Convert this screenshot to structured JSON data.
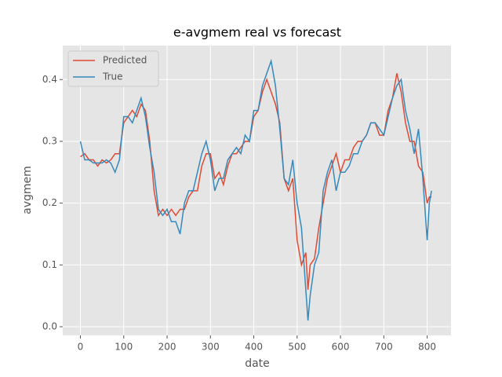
{
  "chart_data": {
    "type": "line",
    "title": "e-avgmem real vs forecast",
    "x_label": "date",
    "y_label": "avgmem",
    "x": [
      0,
      10,
      20,
      30,
      40,
      50,
      60,
      70,
      80,
      90,
      100,
      110,
      120,
      130,
      140,
      150,
      160,
      170,
      180,
      190,
      200,
      210,
      220,
      230,
      240,
      250,
      260,
      270,
      280,
      290,
      300,
      310,
      320,
      330,
      340,
      350,
      360,
      370,
      380,
      390,
      400,
      410,
      420,
      430,
      440,
      450,
      460,
      470,
      480,
      490,
      500,
      510,
      520,
      525,
      530,
      540,
      550,
      560,
      570,
      580,
      590,
      600,
      610,
      620,
      630,
      640,
      650,
      660,
      670,
      680,
      690,
      700,
      710,
      720,
      730,
      740,
      750,
      760,
      770,
      780,
      790,
      800,
      805,
      810
    ],
    "series": [
      {
        "name": "Predicted",
        "color": "#E24A33",
        "values": [
          0.275,
          0.28,
          0.27,
          0.27,
          0.26,
          0.27,
          0.265,
          0.27,
          0.28,
          0.28,
          0.33,
          0.34,
          0.35,
          0.34,
          0.36,
          0.35,
          0.3,
          0.22,
          0.18,
          0.19,
          0.18,
          0.19,
          0.18,
          0.19,
          0.19,
          0.21,
          0.22,
          0.22,
          0.26,
          0.28,
          0.28,
          0.24,
          0.25,
          0.23,
          0.26,
          0.28,
          0.28,
          0.29,
          0.3,
          0.3,
          0.34,
          0.35,
          0.38,
          0.4,
          0.38,
          0.36,
          0.33,
          0.24,
          0.22,
          0.24,
          0.14,
          0.1,
          0.12,
          0.06,
          0.1,
          0.11,
          0.16,
          0.2,
          0.24,
          0.26,
          0.28,
          0.25,
          0.27,
          0.27,
          0.29,
          0.3,
          0.3,
          0.31,
          0.33,
          0.33,
          0.31,
          0.31,
          0.35,
          0.37,
          0.41,
          0.38,
          0.33,
          0.3,
          0.3,
          0.26,
          0.25,
          0.2,
          0.21,
          0.21
        ]
      },
      {
        "name": "True",
        "color": "#348ABD",
        "values": [
          0.3,
          0.27,
          0.27,
          0.265,
          0.265,
          0.265,
          0.27,
          0.265,
          0.25,
          0.27,
          0.34,
          0.34,
          0.33,
          0.35,
          0.37,
          0.34,
          0.29,
          0.25,
          0.19,
          0.18,
          0.19,
          0.17,
          0.17,
          0.15,
          0.2,
          0.22,
          0.22,
          0.25,
          0.28,
          0.3,
          0.27,
          0.22,
          0.24,
          0.24,
          0.27,
          0.28,
          0.29,
          0.28,
          0.31,
          0.3,
          0.35,
          0.35,
          0.39,
          0.41,
          0.43,
          0.39,
          0.32,
          0.24,
          0.23,
          0.27,
          0.2,
          0.16,
          0.06,
          0.01,
          0.05,
          0.1,
          0.12,
          0.22,
          0.25,
          0.27,
          0.22,
          0.25,
          0.25,
          0.26,
          0.28,
          0.28,
          0.3,
          0.31,
          0.33,
          0.33,
          0.32,
          0.31,
          0.34,
          0.37,
          0.39,
          0.4,
          0.35,
          0.32,
          0.28,
          0.32,
          0.24,
          0.14,
          0.2,
          0.22
        ]
      }
    ],
    "xlim": [
      -40.7,
      855
    ],
    "ylim": [
      -0.014,
      0.455
    ],
    "xticks": [
      0,
      100,
      200,
      300,
      400,
      500,
      600,
      700,
      800
    ],
    "yticks": [
      {
        "value": 0,
        "label": "0.0"
      },
      0.1,
      0.2,
      0.3,
      0.4
    ],
    "grid": true,
    "legend": "upper left"
  }
}
